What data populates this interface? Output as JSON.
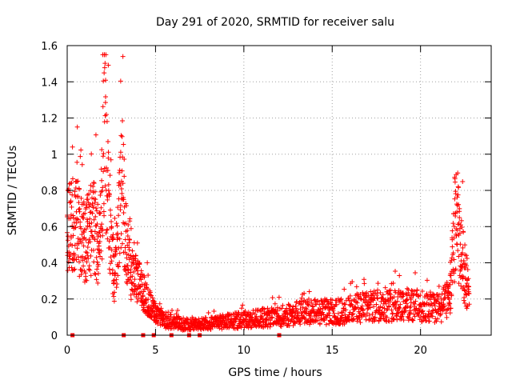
{
  "chart_data": {
    "type": "scatter",
    "title": "Day 291 of 2020, SRMTID for receiver salu",
    "xlabel": "GPS time / hours",
    "ylabel": "SRMTID / TECUs",
    "xlim": [
      0,
      24
    ],
    "ylim": [
      0,
      1.6
    ],
    "x_ticks": [
      0,
      5,
      10,
      15,
      20
    ],
    "y_ticks": [
      0,
      0.2,
      0.4,
      0.6,
      0.8,
      1,
      1.2,
      1.4,
      1.6
    ],
    "x_tick_labels": [
      "0",
      "5",
      "10",
      "15",
      "20"
    ],
    "y_tick_labels": [
      "0",
      "0.2",
      "0.4",
      "0.6",
      "0.8",
      "1",
      "1.2",
      "1.4",
      "1.6"
    ],
    "grid": true,
    "marker": "+",
    "series": [
      {
        "name": "SRMTID",
        "color": "#ff0000",
        "trend": [
          [
            0.0,
            0.55
          ],
          [
            0.3,
            0.62
          ],
          [
            0.6,
            0.58
          ],
          [
            0.9,
            0.52
          ],
          [
            1.2,
            0.55
          ],
          [
            1.5,
            0.62
          ],
          [
            1.8,
            0.45
          ],
          [
            2.0,
            0.8
          ],
          [
            2.1,
            1.3
          ],
          [
            2.2,
            1.0
          ],
          [
            2.5,
            0.45
          ],
          [
            2.7,
            0.32
          ],
          [
            2.9,
            0.55
          ],
          [
            3.1,
            0.95
          ],
          [
            3.3,
            0.55
          ],
          [
            3.6,
            0.35
          ],
          [
            4.0,
            0.3
          ],
          [
            4.4,
            0.22
          ],
          [
            4.8,
            0.15
          ],
          [
            5.2,
            0.1
          ],
          [
            5.6,
            0.08
          ],
          [
            6.5,
            0.06
          ],
          [
            7.5,
            0.06
          ],
          [
            8.5,
            0.07
          ],
          [
            9.5,
            0.08
          ],
          [
            10.5,
            0.09
          ],
          [
            11.5,
            0.1
          ],
          [
            12.5,
            0.11
          ],
          [
            13.5,
            0.13
          ],
          [
            14.5,
            0.13
          ],
          [
            15.5,
            0.13
          ],
          [
            16.5,
            0.15
          ],
          [
            17.5,
            0.16
          ],
          [
            18.5,
            0.17
          ],
          [
            19.5,
            0.17
          ],
          [
            20.5,
            0.15
          ],
          [
            21.2,
            0.15
          ],
          [
            21.7,
            0.25
          ],
          [
            22.0,
            0.7
          ],
          [
            22.2,
            0.5
          ],
          [
            22.5,
            0.35
          ],
          [
            22.7,
            0.25
          ]
        ],
        "sampling_interval_hours": 0.025,
        "x_range": [
          0.0,
          22.75
        ]
      },
      {
        "name": "zero markers",
        "color": "#ff0000",
        "marker": "square",
        "x": [
          0.3,
          3.2,
          4.3,
          4.9,
          5.9,
          6.9,
          7.5,
          12.0
        ],
        "y": [
          0,
          0,
          0,
          0,
          0,
          0,
          0,
          0
        ]
      }
    ]
  }
}
